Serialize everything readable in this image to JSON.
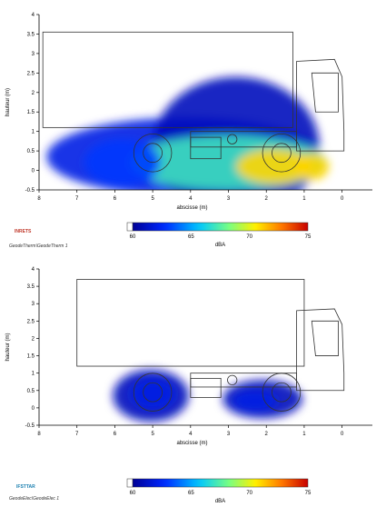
{
  "chart_data": [
    {
      "type": "heatmap",
      "title": "",
      "xlabel": "abscisse (m)",
      "ylabel": "hauteur (m)",
      "xlim": [
        8,
        -0.8
      ],
      "ylim": [
        -0.5,
        4
      ],
      "x_ticks": [
        8,
        7,
        6,
        5,
        4,
        3,
        2,
        1,
        0
      ],
      "y_ticks": [
        "-0.5",
        "0",
        "0.5",
        "1",
        "1.5",
        "2",
        "2.5",
        "3",
        "3.5",
        "4"
      ],
      "colorbar": {
        "label": "dBA",
        "ticks": [
          60,
          65,
          70,
          75
        ],
        "range": [
          60,
          75
        ]
      },
      "blobs": [
        {
          "x": 4.2,
          "y": 0.35,
          "rx": 3.6,
          "ry": 1.0,
          "level": 62
        },
        {
          "x": 2.8,
          "y": 0.6,
          "rx": 2.2,
          "ry": 1.8,
          "level": 61
        },
        {
          "x": 3.0,
          "y": 0.2,
          "rx": 2.6,
          "ry": 0.7,
          "level": 67
        },
        {
          "x": 1.8,
          "y": 0.1,
          "rx": 1.0,
          "ry": 0.45,
          "level": 71
        },
        {
          "x": 0.8,
          "y": 0.1,
          "rx": 0.45,
          "ry": 0.35,
          "level": 71
        },
        {
          "x": 5.8,
          "y": 0.2,
          "rx": 1.0,
          "ry": 0.6,
          "level": 63
        }
      ],
      "caption": "GeodeTherm\\GeodeTherm  1",
      "logo_text": "INRETS"
    },
    {
      "type": "heatmap",
      "title": "",
      "xlabel": "abscisse (m)",
      "ylabel": "hauteur (m)",
      "xlim": [
        8,
        -0.8
      ],
      "ylim": [
        -0.5,
        4
      ],
      "x_ticks": [
        8,
        7,
        6,
        5,
        4,
        3,
        2,
        1,
        0
      ],
      "y_ticks": [
        "-0.5",
        "0",
        "0.5",
        "1",
        "1.5",
        "2",
        "2.5",
        "3",
        "3.5",
        "4"
      ],
      "colorbar": {
        "label": "dBA",
        "ticks": [
          60,
          65,
          70,
          75
        ],
        "range": [
          60,
          75
        ]
      },
      "blobs": [
        {
          "x": 5.05,
          "y": 0.35,
          "rx": 1.0,
          "ry": 0.75,
          "level": 61
        },
        {
          "x": 5.0,
          "y": 0.4,
          "rx": 0.6,
          "ry": 0.45,
          "level": 62
        },
        {
          "x": 2.1,
          "y": 0.25,
          "rx": 1.05,
          "ry": 0.55,
          "level": 61
        },
        {
          "x": 2.3,
          "y": 0.2,
          "rx": 0.6,
          "ry": 0.3,
          "level": 62
        }
      ],
      "caption": "GeodeElec\\GeodeElec  1",
      "logo_text": "IFSTTAR"
    }
  ]
}
